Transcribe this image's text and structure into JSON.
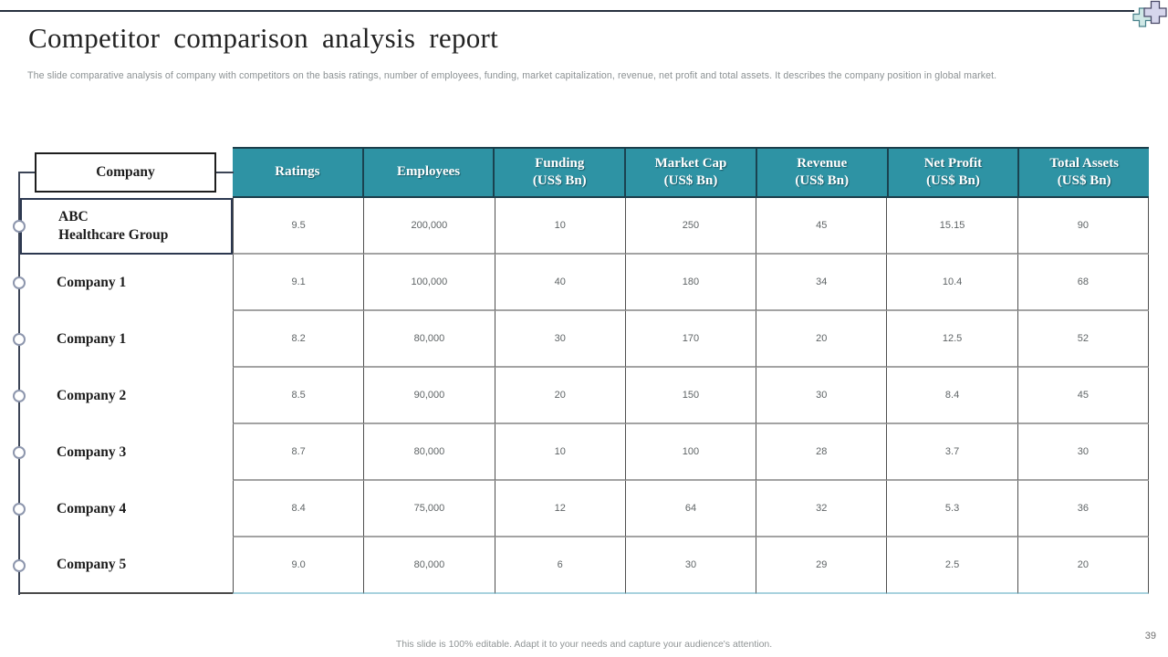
{
  "slide": {
    "title": "Competitor comparison analysis report",
    "subtitle": "The slide comparative analysis of company with competitors on the basis ratings, number of employees, funding, market capitalization, revenue, net profit and total assets. It describes the company position in global market.",
    "footer_note": "This slide is 100% editable. Adapt it to your needs and capture your audience's attention.",
    "page_number": "39"
  },
  "icons": {
    "large_cross": "medical-cross-icon",
    "small_cross": "medical-cross-icon"
  },
  "colors": {
    "header_teal": "#2E93A4",
    "header_border": "#1C3E4B",
    "row_divider": "#A3A3A3",
    "column_divider": "#4F4F4F",
    "connector_navy": "#3C4556",
    "table_bottom_edge": "#A9D2DE",
    "cross_large_fill": "#D6D6EC",
    "cross_small_fill": "#CFE8E6"
  },
  "table": {
    "company_header": "Company",
    "columns": [
      {
        "key": "ratings",
        "label": "Ratings",
        "unit": ""
      },
      {
        "key": "employees",
        "label": "Employees",
        "unit": ""
      },
      {
        "key": "funding",
        "label": "Funding",
        "unit": "(US$ Bn)"
      },
      {
        "key": "market_cap",
        "label": "Market Cap",
        "unit": "(US$ Bn)"
      },
      {
        "key": "revenue",
        "label": "Revenue",
        "unit": "(US$ Bn)"
      },
      {
        "key": "net_profit",
        "label": "Net Profit",
        "unit": "(US$ Bn)"
      },
      {
        "key": "total_assets",
        "label": "Total Assets",
        "unit": "(US$ Bn)"
      }
    ],
    "rows": [
      {
        "company": "ABC\nHealthcare Group",
        "values": [
          "9.5",
          "200,000",
          "10",
          "250",
          "45",
          "15.15",
          "90"
        ]
      },
      {
        "company": "Company 1",
        "values": [
          "9.1",
          "100,000",
          "40",
          "180",
          "34",
          "10.4",
          "68"
        ]
      },
      {
        "company": "Company 1",
        "values": [
          "8.2",
          "80,000",
          "30",
          "170",
          "20",
          "12.5",
          "52"
        ]
      },
      {
        "company": "Company 2",
        "values": [
          "8.5",
          "90,000",
          "20",
          "150",
          "30",
          "8.4",
          "45"
        ]
      },
      {
        "company": "Company 3",
        "values": [
          "8.7",
          "80,000",
          "10",
          "100",
          "28",
          "3.7",
          "30"
        ]
      },
      {
        "company": "Company 4",
        "values": [
          "8.4",
          "75,000",
          "12",
          "64",
          "32",
          "5.3",
          "36"
        ]
      },
      {
        "company": "Company 5",
        "values": [
          "9.0",
          "80,000",
          "6",
          "30",
          "29",
          "2.5",
          "20"
        ]
      }
    ]
  }
}
